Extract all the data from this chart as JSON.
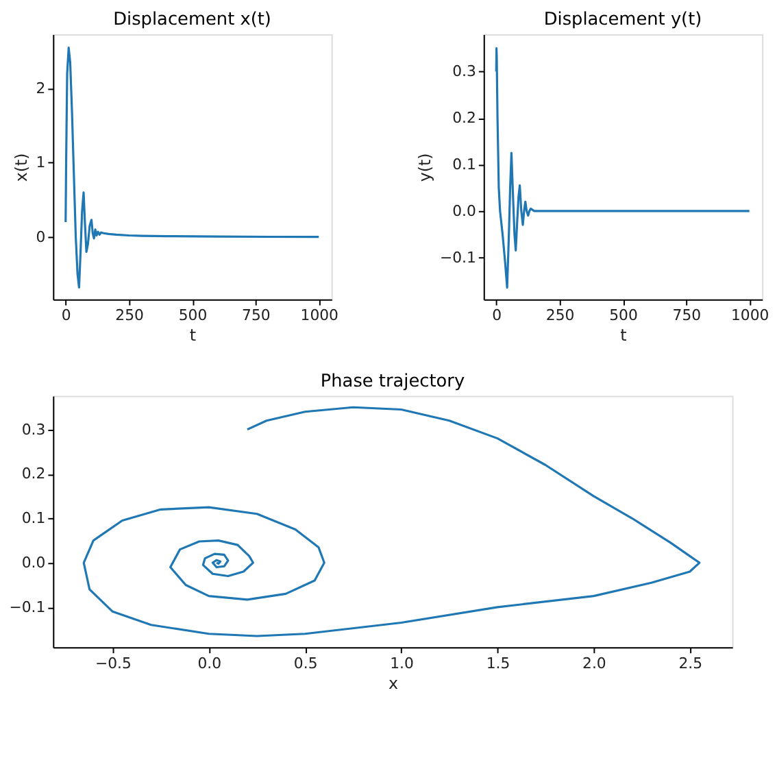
{
  "chart_data": [
    {
      "type": "line",
      "title": "Displacement x(t)",
      "xlabel": "t",
      "ylabel": "x(t)",
      "color": "#1f77b4",
      "grid": false,
      "x": [
        0,
        2,
        6,
        12,
        18,
        25,
        32,
        40,
        47,
        53,
        59,
        65,
        71,
        76,
        82,
        88,
        95,
        102,
        107,
        112,
        117,
        122,
        128,
        134,
        140,
        150,
        170,
        200,
        250,
        300,
        400,
        600,
        800,
        1000
      ],
      "values": [
        0.2,
        1.0,
        2.2,
        2.55,
        2.35,
        1.7,
        0.9,
        0.0,
        -0.5,
        -0.68,
        -0.2,
        0.35,
        0.6,
        0.2,
        -0.2,
        -0.1,
        0.15,
        0.23,
        0.05,
        -0.02,
        0.1,
        0.02,
        0.07,
        0.03,
        0.06,
        0.05,
        0.04,
        0.03,
        0.02,
        0.015,
        0.01,
        0.005,
        0.002,
        0.001
      ],
      "xlim": [
        -50,
        1050
      ],
      "xticks": [
        0,
        250,
        500,
        750,
        1000
      ],
      "ylim": [
        -0.84,
        2.73
      ],
      "yticks": [
        0,
        1,
        2
      ]
    },
    {
      "type": "line",
      "title": "Displacement y(t)",
      "xlabel": "t",
      "ylabel": "y(t)",
      "color": "#1f77b4",
      "grid": false,
      "x": [
        0,
        1,
        2,
        5,
        10,
        15,
        25,
        35,
        43,
        50,
        55,
        60,
        65,
        72,
        77,
        83,
        88,
        93,
        99,
        105,
        110,
        115,
        120,
        126,
        131,
        136,
        150,
        200,
        1000
      ],
      "values": [
        0.3,
        0.35,
        0.33,
        0.2,
        0.05,
        0.0,
        -0.05,
        -0.11,
        -0.165,
        -0.05,
        0.05,
        0.125,
        0.05,
        -0.05,
        -0.085,
        -0.02,
        0.03,
        0.055,
        0.0,
        -0.03,
        0.0,
        0.02,
        0.0,
        -0.01,
        0.0,
        0.005,
        0.0,
        0.0,
        0.0
      ],
      "xlim": [
        -50,
        1050
      ],
      "xticks": [
        0,
        250,
        500,
        750,
        1000
      ],
      "ylim": [
        -0.19,
        0.38
      ],
      "yticks": [
        {
          "value": -0.1,
          "label": "−0.1"
        },
        {
          "value": 0,
          "label": "0.0"
        },
        {
          "value": 0.1,
          "label": "0.1"
        },
        {
          "value": 0.2,
          "label": "0.2"
        },
        {
          "value": 0.3,
          "label": "0.3"
        }
      ]
    },
    {
      "type": "line",
      "title": "Phase trajectory",
      "xlabel": "x",
      "color": "#1f77b4",
      "grid": false,
      "x": [
        0.2,
        0.3,
        0.5,
        0.75,
        1.0,
        1.25,
        1.5,
        1.75,
        2.0,
        2.2,
        2.4,
        2.5,
        2.55,
        2.5,
        2.3,
        2.0,
        1.5,
        1.0,
        0.5,
        0.25,
        0.0,
        -0.3,
        -0.5,
        -0.62,
        -0.65,
        -0.6,
        -0.45,
        -0.25,
        0.0,
        0.25,
        0.45,
        0.57,
        0.6,
        0.55,
        0.4,
        0.2,
        0.0,
        -0.12,
        -0.2,
        -0.15,
        -0.05,
        0.05,
        0.15,
        0.21,
        0.23,
        0.18,
        0.1,
        0.02,
        -0.03,
        -0.02,
        0.03,
        0.08,
        0.1,
        0.08,
        0.04,
        0.02,
        0.04,
        0.06,
        0.05,
        0.04
      ],
      "values": [
        0.3,
        0.32,
        0.34,
        0.35,
        0.345,
        0.32,
        0.28,
        0.22,
        0.15,
        0.1,
        0.045,
        0.015,
        0.0,
        -0.02,
        -0.045,
        -0.075,
        -0.1,
        -0.135,
        -0.16,
        -0.165,
        -0.16,
        -0.14,
        -0.11,
        -0.06,
        0.0,
        0.05,
        0.095,
        0.12,
        0.125,
        0.11,
        0.075,
        0.035,
        0.0,
        -0.04,
        -0.07,
        -0.083,
        -0.075,
        -0.05,
        -0.01,
        0.03,
        0.048,
        0.05,
        0.04,
        0.015,
        0.0,
        -0.02,
        -0.03,
        -0.025,
        -0.005,
        0.01,
        0.02,
        0.018,
        0.005,
        -0.008,
        -0.01,
        0.0,
        0.006,
        0.003,
        -0.002,
        0.0
      ],
      "xlim": [
        -0.81,
        2.72
      ],
      "xticks": [
        {
          "value": -0.5,
          "label": "−0.5"
        },
        {
          "value": 0,
          "label": "0.0"
        },
        {
          "value": 0.5,
          "label": "0.5"
        },
        {
          "value": 1,
          "label": "1.0"
        },
        {
          "value": 1.5,
          "label": "1.5"
        },
        {
          "value": 2,
          "label": "2.0"
        },
        {
          "value": 2.5,
          "label": "2.5"
        }
      ],
      "ylim": [
        -0.19,
        0.376
      ],
      "yticks": [
        {
          "value": -0.1,
          "label": "−0.1"
        },
        {
          "value": 0,
          "label": "0.0"
        },
        {
          "value": 0.1,
          "label": "0.1"
        },
        {
          "value": 0.2,
          "label": "0.2"
        },
        {
          "value": 0.3,
          "label": "0.3"
        }
      ]
    }
  ]
}
